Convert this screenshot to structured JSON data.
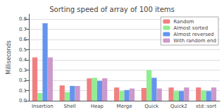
{
  "chart_data": {
    "type": "bar",
    "title": "Sorting speed of array of 100 items",
    "ylabel": "Milliseconds",
    "categories": [
      "Insertion",
      "Shell",
      "Heap",
      "Merge",
      "Quick",
      "Quick2",
      "std::sort"
    ],
    "series": [
      {
        "name": "Random",
        "color": "#f08080",
        "values": [
          0.425,
          0.15,
          0.22,
          0.13,
          0.125,
          0.13,
          0.13
        ]
      },
      {
        "name": "Almost sorted",
        "color": "#90ee90",
        "values": [
          0.075,
          0.085,
          0.225,
          0.095,
          0.3,
          0.095,
          0.1
        ]
      },
      {
        "name": "Almost reversed",
        "color": "#6495ed",
        "values": [
          0.76,
          0.145,
          0.195,
          0.105,
          0.225,
          0.095,
          0.095
        ]
      },
      {
        "name": "With random end",
        "color": "#cc99cc",
        "values": [
          0.425,
          0.145,
          0.22,
          0.12,
          0.12,
          0.13,
          0.13
        ]
      }
    ],
    "ylim": [
      0,
      0.85
    ],
    "yticks": [
      {
        "value": 0,
        "label": "0.0"
      },
      0.1,
      0.2,
      0.3,
      0.4,
      0.5,
      0.6,
      0.7,
      0.8
    ],
    "grid": true,
    "legend": "upper right"
  }
}
